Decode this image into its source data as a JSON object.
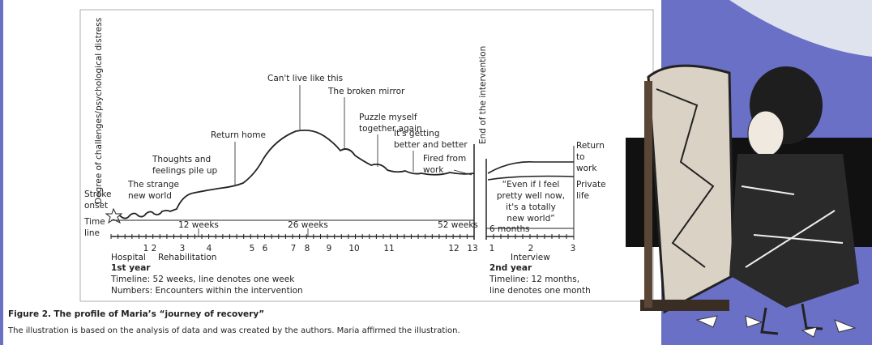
{
  "figure": {
    "y_axis_label": "Degree of challenges/psychological distress",
    "end_label": "End of the intervention",
    "time_line": [
      "Time",
      "line"
    ],
    "annotations": [
      {
        "lines": [
          "Stroke",
          "onset"
        ]
      },
      {
        "lines": [
          "The strange",
          "new world"
        ]
      },
      {
        "lines": [
          "Thoughts and",
          "feelings pile up"
        ]
      },
      {
        "lines": [
          "Return home"
        ]
      },
      {
        "lines": [
          "Can't live like this"
        ]
      },
      {
        "lines": [
          "The broken mirror"
        ]
      },
      {
        "lines": [
          "Puzzle myself",
          "together again"
        ]
      },
      {
        "lines": [
          "It's getting",
          "better and better"
        ]
      },
      {
        "lines": [
          "Fired from",
          "work"
        ]
      },
      {
        "lines": [
          "Return",
          "to",
          "work"
        ]
      },
      {
        "lines": [
          "Private",
          "life"
        ]
      }
    ],
    "quote": [
      "“Even if I feel",
      "pretty well now,",
      "it's a totally",
      "new world”"
    ],
    "week_marks": [
      "12 weeks",
      "26 weeks",
      "52 weeks"
    ],
    "month_mark": "6 months",
    "encounters_year1": [
      1,
      2,
      3,
      4,
      5,
      6,
      7,
      8,
      9,
      10,
      11,
      12,
      13
    ],
    "months_year2": [
      1,
      2,
      3
    ],
    "phases": [
      "Hospital",
      "Rehabilitation",
      "Interview"
    ],
    "year1": {
      "title": "1st year",
      "lines": [
        "Timeline: 52 weeks, line denotes one week",
        "Numbers: Encounters within the intervention"
      ]
    },
    "year2": {
      "title": "2nd year",
      "lines": [
        "Timeline: 12 months,",
        "line denotes one month"
      ]
    }
  },
  "caption": {
    "label": "Figure 2.",
    "title": "The profile of Maria’s “journey of recovery”",
    "note": "The illustration is based on the analysis of data and was created by the authors. Maria affirmed the illustration."
  }
}
